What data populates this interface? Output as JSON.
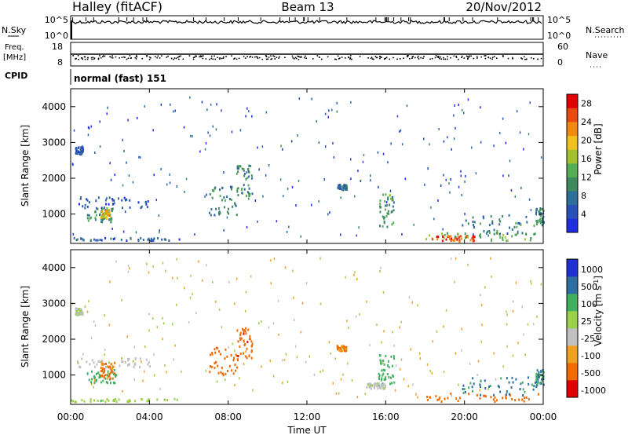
{
  "header": {
    "station": "Halley (fitACF)",
    "beam": "Beam 13",
    "date": "20/Nov/2012"
  },
  "strips": {
    "nsky_label": "N.Sky",
    "nsky_ticks": [
      "10^5",
      "10^0"
    ],
    "nsearch_label": "N.Search",
    "nsearch_ticks": [
      "10^5",
      "10^0"
    ],
    "freq_label": "Freq.",
    "freq_unit": "[MHz]",
    "freq_ticks": [
      "18",
      "8"
    ],
    "nave_label": "Nave",
    "nave_ticks": [
      "60",
      "0"
    ],
    "cpid_label": "CPID",
    "cpid_value": "normal (fast) 151"
  },
  "x_axis": {
    "label": "Time UT",
    "ticks": [
      "00:00",
      "04:00",
      "08:00",
      "12:00",
      "16:00",
      "20:00",
      "00:00"
    ],
    "range_hours": [
      0,
      24
    ]
  },
  "colors": {
    "power": [
      "#1f2fe0",
      "#2850b8",
      "#2e6e9a",
      "#3f8a5c",
      "#55ae55",
      "#a0c030",
      "#f0c020",
      "#f08a10",
      "#e84a10",
      "#e00000"
    ],
    "velocity": [
      "#e00000",
      "#f06a00",
      "#f0a020",
      "#c0c0c0",
      "#9ad04a",
      "#40b060",
      "#2e6ea0",
      "#1f2fd0"
    ]
  },
  "chart_data": [
    {
      "type": "heatmap",
      "name": "power",
      "ylabel": "Slant Range [km]",
      "ylim": [
        180,
        4500
      ],
      "yticks": [
        "1000",
        "2000",
        "3000",
        "4000"
      ],
      "colorbar_label": "Power [dB]",
      "colorbar_ticks": [
        "4",
        "8",
        "12",
        "16",
        "20",
        "24",
        "28"
      ],
      "clim": [
        0,
        30
      ],
      "regions": [
        {
          "t": [
            0.2,
            0.6
          ],
          "r": [
            2700,
            2900
          ],
          "v": 6
        },
        {
          "t": [
            0.3,
            4.0
          ],
          "r": [
            1200,
            1500
          ],
          "v": 5
        },
        {
          "t": [
            0.8,
            2.2
          ],
          "r": [
            800,
            1200
          ],
          "v": 10
        },
        {
          "t": [
            1.5,
            2.0
          ],
          "r": [
            900,
            1150
          ],
          "v": 20
        },
        {
          "t": [
            0.0,
            5.5
          ],
          "r": [
            280,
            360
          ],
          "v": 6
        },
        {
          "t": [
            7.0,
            8.5
          ],
          "r": [
            1000,
            1800
          ],
          "v": 9
        },
        {
          "t": [
            8.4,
            9.2
          ],
          "r": [
            1500,
            2400
          ],
          "v": 10
        },
        {
          "t": [
            13.5,
            14.0
          ],
          "r": [
            1700,
            1850
          ],
          "v": 8
        },
        {
          "t": [
            15.6,
            16.4
          ],
          "r": [
            600,
            1600
          ],
          "v": 12
        },
        {
          "t": [
            18.0,
            23.8
          ],
          "r": [
            280,
            500
          ],
          "v": 14
        },
        {
          "t": [
            18.3,
            20.5
          ],
          "r": [
            260,
            420
          ],
          "v": 26
        },
        {
          "t": [
            19.8,
            23.6
          ],
          "r": [
            450,
            1000
          ],
          "v": 9
        },
        {
          "t": [
            23.6,
            24.0
          ],
          "r": [
            700,
            1200
          ],
          "v": 10
        }
      ]
    },
    {
      "type": "heatmap",
      "name": "velocity",
      "ylabel": "Slant Range [km]",
      "ylim": [
        180,
        4500
      ],
      "yticks": [
        "1000",
        "2000",
        "3000",
        "4000"
      ],
      "colorbar_label": "Velocity [m s^-1]",
      "colorbar_ticks": [
        "1000",
        "500",
        "100",
        "25",
        "-25",
        "-100",
        "-500",
        "-1000"
      ],
      "regions": [
        {
          "t": [
            0.2,
            0.6
          ],
          "r": [
            2700,
            2900
          ],
          "v": 25
        },
        {
          "t": [
            0.3,
            4.0
          ],
          "r": [
            1250,
            1500
          ],
          "v": 20
        },
        {
          "t": [
            0.8,
            2.3
          ],
          "r": [
            800,
            1200
          ],
          "v": 200
        },
        {
          "t": [
            1.5,
            2.2
          ],
          "r": [
            900,
            1400
          ],
          "v": -120
        },
        {
          "t": [
            0.0,
            5.5
          ],
          "r": [
            280,
            360
          ],
          "v": 80
        },
        {
          "t": [
            7.0,
            8.5
          ],
          "r": [
            1000,
            1800
          ],
          "v": -300
        },
        {
          "t": [
            8.4,
            9.2
          ],
          "r": [
            1500,
            2400
          ],
          "v": -400
        },
        {
          "t": [
            13.5,
            14.0
          ],
          "r": [
            1700,
            1850
          ],
          "v": -100
        },
        {
          "t": [
            15.6,
            16.4
          ],
          "r": [
            700,
            1600
          ],
          "v": 150
        },
        {
          "t": [
            15.0,
            16.0
          ],
          "r": [
            650,
            800
          ],
          "v": 20
        },
        {
          "t": [
            18.0,
            23.8
          ],
          "r": [
            280,
            520
          ],
          "v": -150
        },
        {
          "t": [
            19.8,
            23.6
          ],
          "r": [
            450,
            1000
          ],
          "v": 600
        },
        {
          "t": [
            23.6,
            24.0
          ],
          "r": [
            700,
            1200
          ],
          "v": 500
        }
      ]
    }
  ]
}
